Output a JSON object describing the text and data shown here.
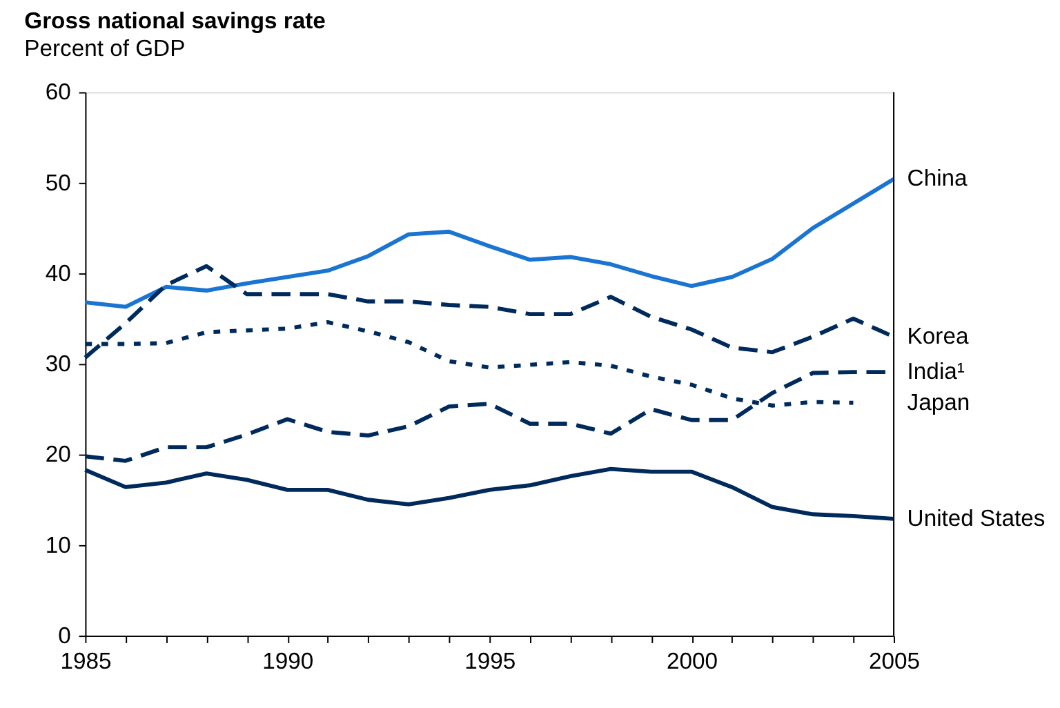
{
  "chart_data": {
    "type": "line",
    "title": "Gross national savings rate",
    "subtitle": "Percent of GDP",
    "x": [
      1985,
      1986,
      1987,
      1988,
      1989,
      1990,
      1991,
      1992,
      1993,
      1994,
      1995,
      1996,
      1997,
      1998,
      1999,
      2000,
      2001,
      2002,
      2003,
      2004,
      2005
    ],
    "series": [
      {
        "name": "China",
        "color": "#1a75d2",
        "line_style": "solid",
        "values": [
          36.8,
          36.3,
          38.5,
          38.1,
          38.9,
          39.6,
          40.3,
          41.9,
          44.3,
          44.6,
          43.0,
          41.5,
          41.8,
          41.0,
          39.7,
          38.6,
          39.6,
          41.6,
          45.0,
          47.7,
          50.4
        ]
      },
      {
        "name": "Korea",
        "color": "#002a5c",
        "line_style": "dashed",
        "values": [
          30.7,
          34.5,
          38.7,
          40.8,
          37.7,
          37.7,
          37.7,
          36.9,
          36.9,
          36.5,
          36.3,
          35.5,
          35.5,
          37.4,
          35.2,
          33.8,
          31.8,
          31.3,
          33.0,
          35.0,
          33.0
        ]
      },
      {
        "name": "India¹",
        "color": "#002a5c",
        "line_style": "dashed",
        "values": [
          19.8,
          19.3,
          20.8,
          20.8,
          22.2,
          23.9,
          22.5,
          22.1,
          23.1,
          25.3,
          25.6,
          23.4,
          23.4,
          22.3,
          25.0,
          23.8,
          23.8,
          26.8,
          29.0,
          29.1,
          29.1
        ]
      },
      {
        "name": "Japan",
        "color": "#002a5c",
        "line_style": "dotted",
        "values": [
          32.2,
          32.2,
          32.3,
          33.5,
          33.7,
          33.9,
          34.6,
          33.6,
          32.4,
          30.3,
          29.6,
          29.9,
          30.2,
          29.8,
          28.6,
          27.7,
          26.2,
          25.4,
          25.8,
          25.7,
          null
        ]
      },
      {
        "name": "United States",
        "color": "#002a5c",
        "line_style": "solid",
        "values": [
          18.3,
          16.4,
          16.9,
          17.9,
          17.2,
          16.1,
          16.1,
          15.0,
          14.5,
          15.2,
          16.1,
          16.6,
          17.6,
          18.4,
          18.1,
          18.1,
          16.4,
          14.2,
          13.4,
          13.2,
          12.9
        ]
      }
    ],
    "xlim": [
      1985,
      2005
    ],
    "xticks": [
      1985,
      {
        "value": 1986,
        "label": null
      },
      {
        "value": 1987,
        "label": null
      },
      {
        "value": 1988,
        "label": null
      },
      {
        "value": 1989,
        "label": null
      },
      1990,
      {
        "value": 1991,
        "label": null
      },
      {
        "value": 1992,
        "label": null
      },
      {
        "value": 1993,
        "label": null
      },
      {
        "value": 1994,
        "label": null
      },
      1995,
      {
        "value": 1996,
        "label": null
      },
      {
        "value": 1997,
        "label": null
      },
      {
        "value": 1998,
        "label": null
      },
      {
        "value": 1999,
        "label": null
      },
      2000,
      {
        "value": 2001,
        "label": null
      },
      {
        "value": 2002,
        "label": null
      },
      {
        "value": 2003,
        "label": null
      },
      {
        "value": 2004,
        "label": null
      },
      2005
    ],
    "ylim": [
      0,
      60
    ],
    "yticks": [
      0,
      10,
      20,
      30,
      40,
      50,
      60
    ],
    "grid": false,
    "legend": "right",
    "marker": "none"
  }
}
